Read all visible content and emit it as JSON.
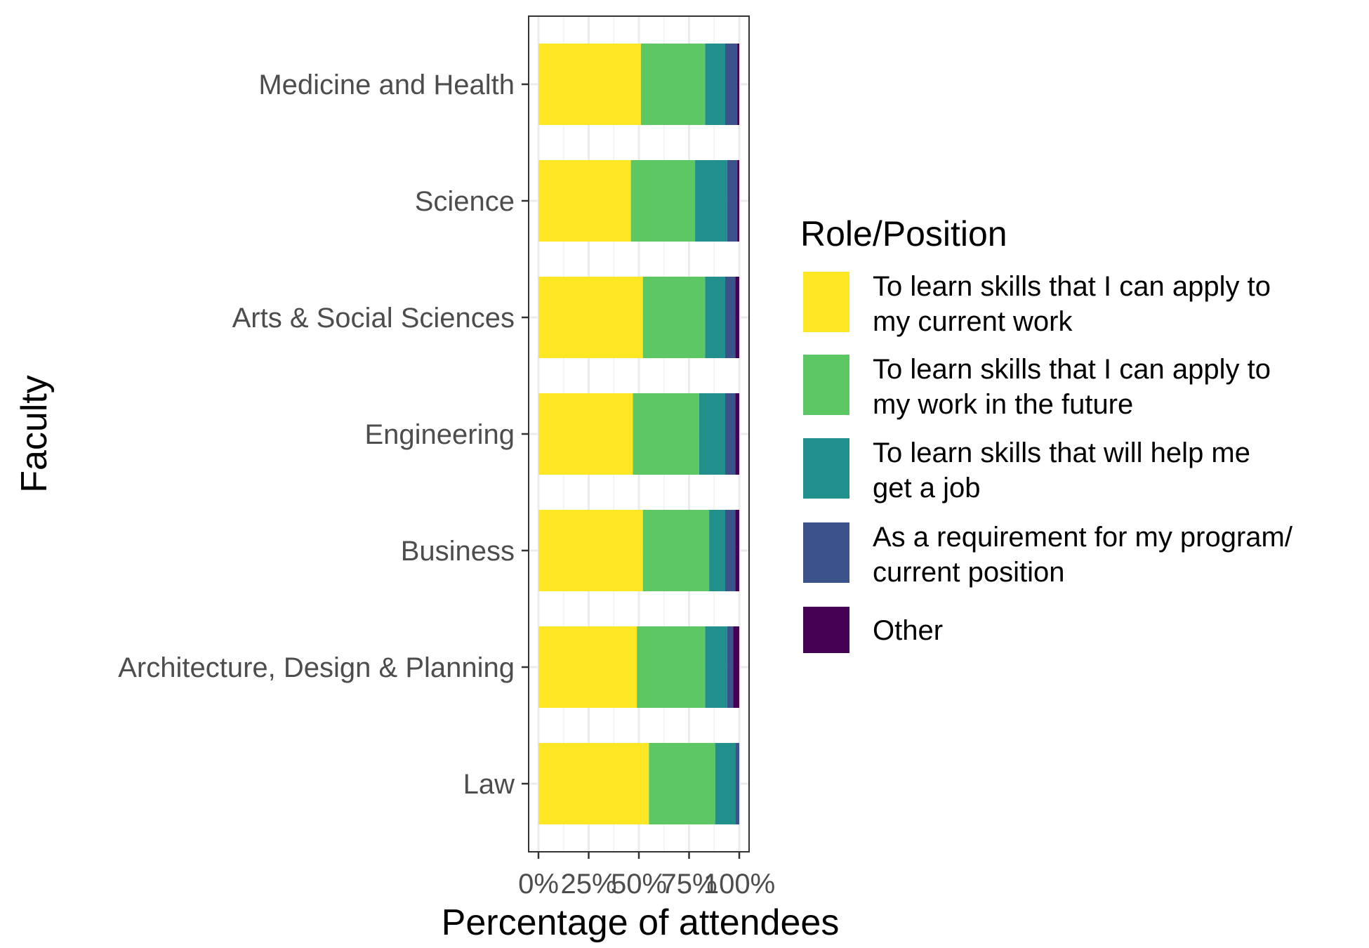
{
  "chart_data": {
    "type": "bar",
    "orientation": "horizontal",
    "stacked": true,
    "categories": [
      "Medicine and Health",
      "Science",
      "Arts & Social Sciences",
      "Engineering",
      "Business",
      "Architecture, Design & Planning",
      "Law"
    ],
    "series": [
      {
        "name": "To learn skills that I can apply to my current work",
        "label_lines": [
          "To learn skills that I can apply to",
          "my current work"
        ],
        "color": "#FDE725",
        "values": [
          51,
          46,
          52,
          47,
          52,
          49,
          55
        ]
      },
      {
        "name": "To learn skills that I can apply to my work in the future",
        "label_lines": [
          "To learn skills that I can apply to",
          "my work in the future"
        ],
        "color": "#5DC863",
        "values": [
          32,
          32,
          31,
          33,
          33,
          34,
          33
        ]
      },
      {
        "name": "To learn skills that will help me get a job",
        "label_lines": [
          "To learn skills that will help me",
          "get a job"
        ],
        "color": "#21908C",
        "values": [
          10,
          16,
          10,
          13,
          8,
          11,
          10
        ]
      },
      {
        "name": "As a requirement for my program/ current position",
        "label_lines": [
          "As a requirement for my program/",
          "current position"
        ],
        "color": "#3B528B",
        "values": [
          6,
          5,
          5,
          5,
          5,
          3,
          2
        ]
      },
      {
        "name": "Other",
        "label_lines": [
          "Other"
        ],
        "color": "#440154",
        "values": [
          1,
          1,
          2,
          2,
          2,
          3,
          0
        ]
      }
    ],
    "x_ticks": [
      "0%",
      "25%",
      "50%",
      "75%",
      "100%"
    ],
    "xlim": [
      0,
      100
    ],
    "xlabel": "Percentage of attendees",
    "ylabel": "Faculty",
    "legend_title": "Role/Position",
    "legend_position": "right",
    "grid": true
  }
}
